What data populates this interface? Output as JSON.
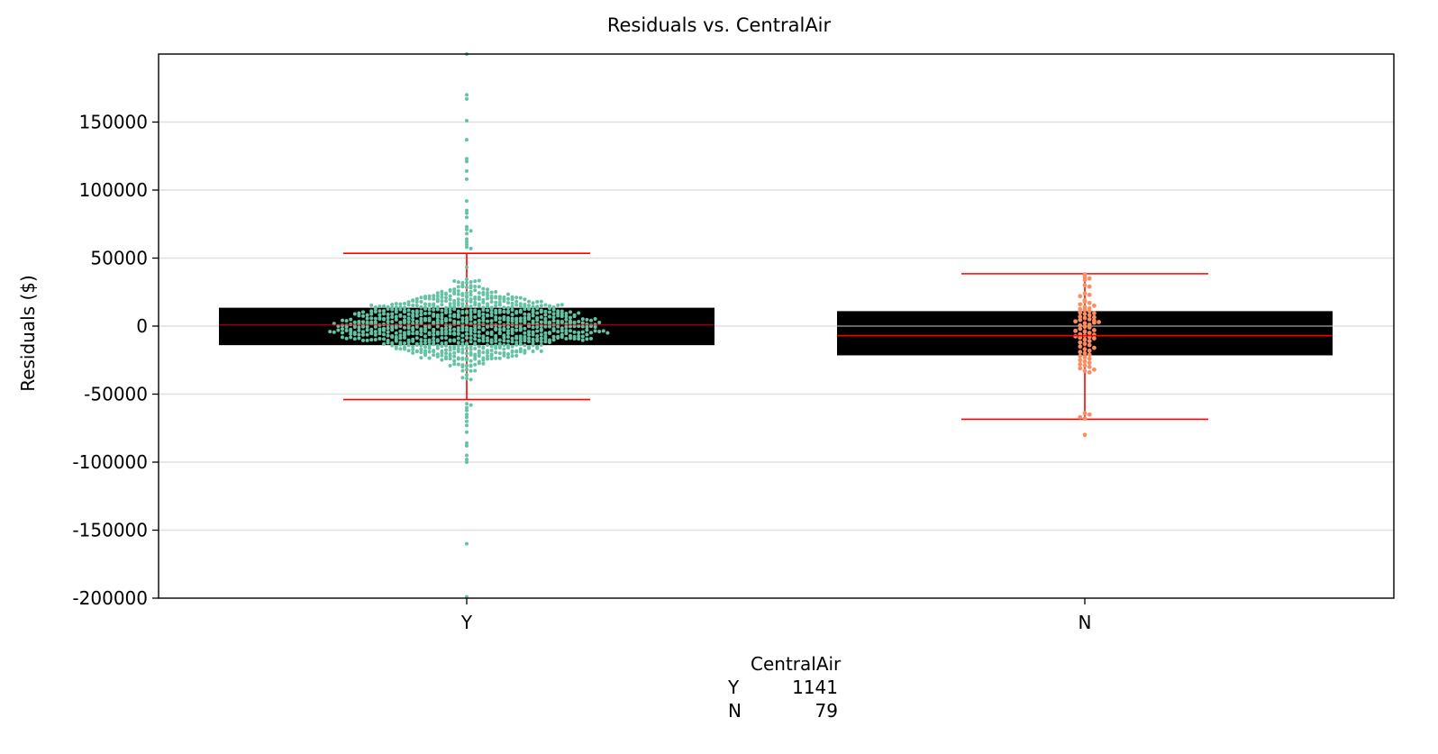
{
  "chart_data": {
    "type": "box+swarm",
    "title": "Residuals vs. CentralAir",
    "xlabel": "",
    "ylabel": "Residuals ($)",
    "ylim": [
      -200000,
      200000
    ],
    "yticks": [
      150000,
      100000,
      50000,
      0,
      -50000,
      -100000,
      -150000,
      -200000
    ],
    "ytick_labels": [
      "150000",
      "100000",
      "50000",
      "0",
      "-50000",
      "-100000",
      "-150000",
      "-200000"
    ],
    "categories": [
      "Y",
      "N"
    ],
    "grid": "horizontal",
    "series": [
      {
        "category": "Y",
        "count": 1141,
        "color": "#66c2a5",
        "box": {
          "q1": -14000,
          "median": 1000,
          "q3": 13500,
          "whisker_low": -54000,
          "whisker_high": 53500
        },
        "outliers": [
          200000,
          170000,
          167000,
          151000,
          137000,
          123000,
          121000,
          114000,
          108000,
          92000,
          85000,
          83000,
          80000,
          73000,
          71000,
          70000,
          68000,
          64000,
          62000,
          60000,
          58000,
          57000,
          -57000,
          -58000,
          -60000,
          -62000,
          -65000,
          -67000,
          -70000,
          -73000,
          -78000,
          -86000,
          -88000,
          -95000,
          -98000,
          -100000,
          -160000,
          -199000
        ]
      },
      {
        "category": "N",
        "count": 79,
        "color": "#fc8d62",
        "box": {
          "q1": -21500,
          "median": -7000,
          "q3": 11000,
          "whisker_low": -68500,
          "whisker_high": 38500
        },
        "points": [
          38000,
          36000,
          34000,
          35000,
          30000,
          29000,
          24000,
          23000,
          22000,
          18000,
          17000,
          16000,
          14000,
          13000,
          12000,
          12500,
          11000,
          10000,
          9000,
          8000,
          7000,
          6000,
          5000,
          4500,
          4000,
          3500,
          3000,
          2000,
          1000,
          500,
          -500,
          -1000,
          -2000,
          -3000,
          -4000,
          -5000,
          -6000,
          -7000,
          -8000,
          -8500,
          -9000,
          -10000,
          -11000,
          -12000,
          -13000,
          -14000,
          -15000,
          -16000,
          -17000,
          -18000,
          -19000,
          -20000,
          -21000,
          -22000,
          -23000,
          -24000,
          -25000,
          -26000,
          -27000,
          -28000,
          -29000,
          -30000,
          -31000,
          -32000,
          -33000,
          -34000,
          -6500,
          -7500,
          -3500,
          2500,
          6500,
          9500,
          15000,
          19000,
          -64000,
          -65000,
          -67000,
          -68000,
          -80000
        ]
      }
    ],
    "count_table": {
      "header": "CentralAir",
      "rows": [
        {
          "label": "Y",
          "value": "1141"
        },
        {
          "label": "N",
          "value": "79"
        }
      ]
    },
    "whisker_color": "#ff0000",
    "box_color": "#000000"
  }
}
